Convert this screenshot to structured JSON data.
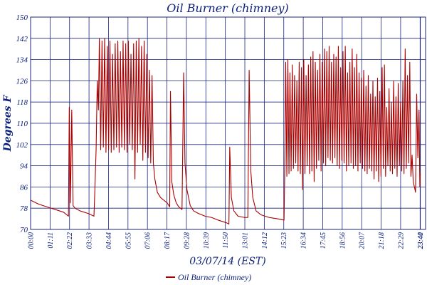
{
  "colors": {
    "series": "#aa0000",
    "grid": "#1a237e",
    "text": "#0b1f7a",
    "background": "#ffffff"
  },
  "chart_data": {
    "type": "line",
    "title": "Oil Burner (chimney)",
    "xlabel": "03/07/14 (EST)",
    "ylabel": "Degrees F",
    "ylim": [
      70,
      150
    ],
    "xlim": [
      0,
      24
    ],
    "grid": true,
    "legend_position": "bottom-center",
    "y_ticks": [
      "70",
      "78",
      "86",
      "94",
      "102",
      "110",
      "118",
      "126",
      "134",
      "142",
      "150"
    ],
    "x_ticks": [
      {
        "label": "00:00",
        "x": 0
      },
      {
        "label": "01:11",
        "x": 1.1833
      },
      {
        "label": "02:22",
        "x": 2.3667
      },
      {
        "label": "03:33",
        "x": 3.55
      },
      {
        "label": "04:44",
        "x": 4.7333
      },
      {
        "label": "05:55",
        "x": 5.9167
      },
      {
        "label": "07:06",
        "x": 7.1
      },
      {
        "label": "08:17",
        "x": 8.2833
      },
      {
        "label": "09:28",
        "x": 9.4667
      },
      {
        "label": "10:39",
        "x": 10.65
      },
      {
        "label": "11:50",
        "x": 11.8333
      },
      {
        "label": "13:01",
        "x": 13.0167
      },
      {
        "label": "14:12",
        "x": 14.2
      },
      {
        "label": "15:23",
        "x": 15.3833
      },
      {
        "label": "16:34",
        "x": 16.5667
      },
      {
        "label": "17:45",
        "x": 17.75
      },
      {
        "label": "18:56",
        "x": 18.9333
      },
      {
        "label": "20:07",
        "x": 20.1167
      },
      {
        "label": "21:18",
        "x": 21.3
      },
      {
        "label": "22:29",
        "x": 22.4833
      },
      {
        "label": "23:40",
        "x": 23.6667
      },
      {
        "label": "23:41",
        "x": 23.6833
      }
    ],
    "series": [
      {
        "name": "Oil Burner (chimney)",
        "color": "#aa0000",
        "points": [
          [
            0.0,
            81
          ],
          [
            0.5,
            79.5
          ],
          [
            1.0,
            78.5
          ],
          [
            1.5,
            77.5
          ],
          [
            2.0,
            76.5
          ],
          [
            2.3,
            75
          ],
          [
            2.35,
            116
          ],
          [
            2.42,
            80
          ],
          [
            2.5,
            115
          ],
          [
            2.58,
            79
          ],
          [
            2.7,
            78
          ],
          [
            3.0,
            77
          ],
          [
            3.5,
            76
          ],
          [
            3.85,
            75
          ],
          [
            3.9,
            84
          ],
          [
            3.98,
            100
          ],
          [
            4.05,
            126
          ],
          [
            4.12,
            115
          ],
          [
            4.18,
            142
          ],
          [
            4.26,
            100
          ],
          [
            4.34,
            141
          ],
          [
            4.42,
            101
          ],
          [
            4.5,
            142
          ],
          [
            4.58,
            99
          ],
          [
            4.66,
            139
          ],
          [
            4.74,
            100
          ],
          [
            4.82,
            141
          ],
          [
            4.9,
            99
          ],
          [
            4.98,
            136
          ],
          [
            5.06,
            100
          ],
          [
            5.14,
            140
          ],
          [
            5.22,
            101
          ],
          [
            5.3,
            141
          ],
          [
            5.38,
            99
          ],
          [
            5.46,
            137
          ],
          [
            5.54,
            101
          ],
          [
            5.62,
            141
          ],
          [
            5.7,
            100
          ],
          [
            5.78,
            140
          ],
          [
            5.86,
            99
          ],
          [
            5.94,
            141
          ],
          [
            6.02,
            102
          ],
          [
            6.1,
            136
          ],
          [
            6.18,
            100
          ],
          [
            6.26,
            140
          ],
          [
            6.34,
            89
          ],
          [
            6.42,
            141
          ],
          [
            6.5,
            99
          ],
          [
            6.58,
            142
          ],
          [
            6.66,
            102
          ],
          [
            6.74,
            139
          ],
          [
            6.82,
            96
          ],
          [
            6.9,
            141
          ],
          [
            6.98,
            99
          ],
          [
            7.06,
            136
          ],
          [
            7.14,
            97
          ],
          [
            7.22,
            130
          ],
          [
            7.3,
            95
          ],
          [
            7.38,
            128
          ],
          [
            7.46,
            95
          ],
          [
            7.55,
            89
          ],
          [
            7.7,
            84
          ],
          [
            7.9,
            82
          ],
          [
            8.1,
            81
          ],
          [
            8.3,
            80
          ],
          [
            8.45,
            78.5
          ],
          [
            8.5,
            122
          ],
          [
            8.58,
            88
          ],
          [
            8.7,
            83
          ],
          [
            8.85,
            80
          ],
          [
            9.0,
            78.5
          ],
          [
            9.2,
            77.5
          ],
          [
            9.3,
            129
          ],
          [
            9.38,
            95
          ],
          [
            9.5,
            85
          ],
          [
            9.7,
            79
          ],
          [
            9.9,
            77
          ],
          [
            10.2,
            76
          ],
          [
            10.6,
            75
          ],
          [
            11.0,
            74.5
          ],
          [
            11.4,
            73.5
          ],
          [
            11.9,
            72.5
          ],
          [
            12.05,
            72
          ],
          [
            12.1,
            101
          ],
          [
            12.2,
            82
          ],
          [
            12.35,
            77
          ],
          [
            12.6,
            75
          ],
          [
            13.0,
            74.5
          ],
          [
            13.2,
            74.5
          ],
          [
            13.28,
            130
          ],
          [
            13.38,
            92
          ],
          [
            13.5,
            82
          ],
          [
            13.7,
            77
          ],
          [
            14.0,
            75.5
          ],
          [
            14.5,
            74.5
          ],
          [
            15.0,
            74
          ],
          [
            15.4,
            73.5
          ],
          [
            15.45,
            95
          ],
          [
            15.5,
            133
          ],
          [
            15.57,
            90
          ],
          [
            15.63,
            134
          ],
          [
            15.7,
            91
          ],
          [
            15.76,
            129
          ],
          [
            15.83,
            92
          ],
          [
            15.9,
            132
          ],
          [
            15.97,
            93
          ],
          [
            16.04,
            128
          ],
          [
            16.11,
            95
          ],
          [
            16.18,
            126
          ],
          [
            16.25,
            92
          ],
          [
            16.32,
            133
          ],
          [
            16.39,
            91
          ],
          [
            16.46,
            131
          ],
          [
            16.53,
            85
          ],
          [
            16.6,
            134
          ],
          [
            16.67,
            91
          ],
          [
            16.74,
            128
          ],
          [
            16.81,
            94
          ],
          [
            16.88,
            132
          ],
          [
            16.95,
            91
          ],
          [
            17.02,
            135
          ],
          [
            17.09,
            92
          ],
          [
            17.16,
            137
          ],
          [
            17.23,
            88
          ],
          [
            17.3,
            133
          ],
          [
            17.37,
            93
          ],
          [
            17.44,
            130
          ],
          [
            17.51,
            96
          ],
          [
            17.58,
            136
          ],
          [
            17.65,
            92
          ],
          [
            17.72,
            133
          ],
          [
            17.79,
            95
          ],
          [
            17.86,
            138
          ],
          [
            17.93,
            94
          ],
          [
            18.0,
            137
          ],
          [
            18.07,
            97
          ],
          [
            18.14,
            139
          ],
          [
            18.21,
            96
          ],
          [
            18.28,
            133
          ],
          [
            18.35,
            95
          ],
          [
            18.42,
            136
          ],
          [
            18.49,
            97
          ],
          [
            18.56,
            135
          ],
          [
            18.63,
            94
          ],
          [
            18.7,
            139
          ],
          [
            18.77,
            93
          ],
          [
            18.84,
            131
          ],
          [
            18.91,
            96
          ],
          [
            18.98,
            137
          ],
          [
            19.05,
            95
          ],
          [
            19.12,
            139
          ],
          [
            19.19,
            92
          ],
          [
            19.26,
            129
          ],
          [
            19.33,
            94
          ],
          [
            19.4,
            133
          ],
          [
            19.47,
            95
          ],
          [
            19.54,
            138
          ],
          [
            19.61,
            93
          ],
          [
            19.68,
            131
          ],
          [
            19.75,
            94
          ],
          [
            19.82,
            136
          ],
          [
            19.89,
            92
          ],
          [
            19.96,
            129
          ],
          [
            20.03,
            95
          ],
          [
            20.1,
            127
          ],
          [
            20.17,
            93
          ],
          [
            20.24,
            130
          ],
          [
            20.31,
            92
          ],
          [
            20.38,
            124
          ],
          [
            20.45,
            91
          ],
          [
            20.52,
            128
          ],
          [
            20.59,
            93
          ],
          [
            20.66,
            121
          ],
          [
            20.73,
            92
          ],
          [
            20.8,
            126
          ],
          [
            20.87,
            89
          ],
          [
            20.94,
            120
          ],
          [
            21.01,
            92
          ],
          [
            21.08,
            127
          ],
          [
            21.15,
            88
          ],
          [
            21.22,
            122
          ],
          [
            21.29,
            90
          ],
          [
            21.36,
            131
          ],
          [
            21.43,
            93
          ],
          [
            21.5,
            132
          ],
          [
            21.57,
            90
          ],
          [
            21.64,
            116
          ],
          [
            21.71,
            94
          ],
          [
            21.78,
            123
          ],
          [
            21.85,
            92
          ],
          [
            21.92,
            118
          ],
          [
            21.99,
            91
          ],
          [
            22.06,
            126
          ],
          [
            22.13,
            93
          ],
          [
            22.2,
            120
          ],
          [
            22.27,
            90
          ],
          [
            22.34,
            125
          ],
          [
            22.41,
            94
          ],
          [
            22.48,
            118
          ],
          [
            22.55,
            92
          ],
          [
            22.62,
            126
          ],
          [
            22.69,
            91
          ],
          [
            22.76,
            138
          ],
          [
            22.83,
            93
          ],
          [
            22.9,
            128
          ],
          [
            22.97,
            95
          ],
          [
            23.04,
            133
          ],
          [
            23.11,
            90
          ],
          [
            23.18,
            98
          ],
          [
            23.25,
            88
          ],
          [
            23.32,
            86
          ],
          [
            23.39,
            84
          ],
          [
            23.46,
            121
          ],
          [
            23.53,
            97
          ],
          [
            23.6,
            115
          ],
          [
            23.65,
            86
          ],
          [
            23.68,
            91
          ]
        ]
      }
    ]
  }
}
